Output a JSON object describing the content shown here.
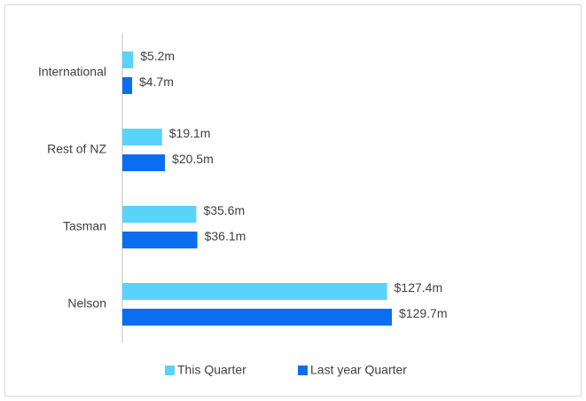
{
  "chart_data": {
    "type": "bar",
    "orientation": "horizontal",
    "categories": [
      "International",
      "Rest of NZ",
      "Tasman",
      "Nelson"
    ],
    "series": [
      {
        "name": "This Quarter",
        "color": "#5ad3fa",
        "values": [
          5.2,
          19.1,
          35.6,
          127.4
        ],
        "value_labels": [
          "$5.2m",
          "$19.1m",
          "$35.6m",
          "$127.4m"
        ]
      },
      {
        "name": "Last year Quarter",
        "color": "#0b6ef0",
        "values": [
          4.7,
          20.5,
          36.1,
          129.7
        ],
        "value_labels": [
          "$4.7m",
          "$20.5m",
          "$36.1m",
          "$129.7m"
        ]
      }
    ],
    "legend": "bottom"
  }
}
